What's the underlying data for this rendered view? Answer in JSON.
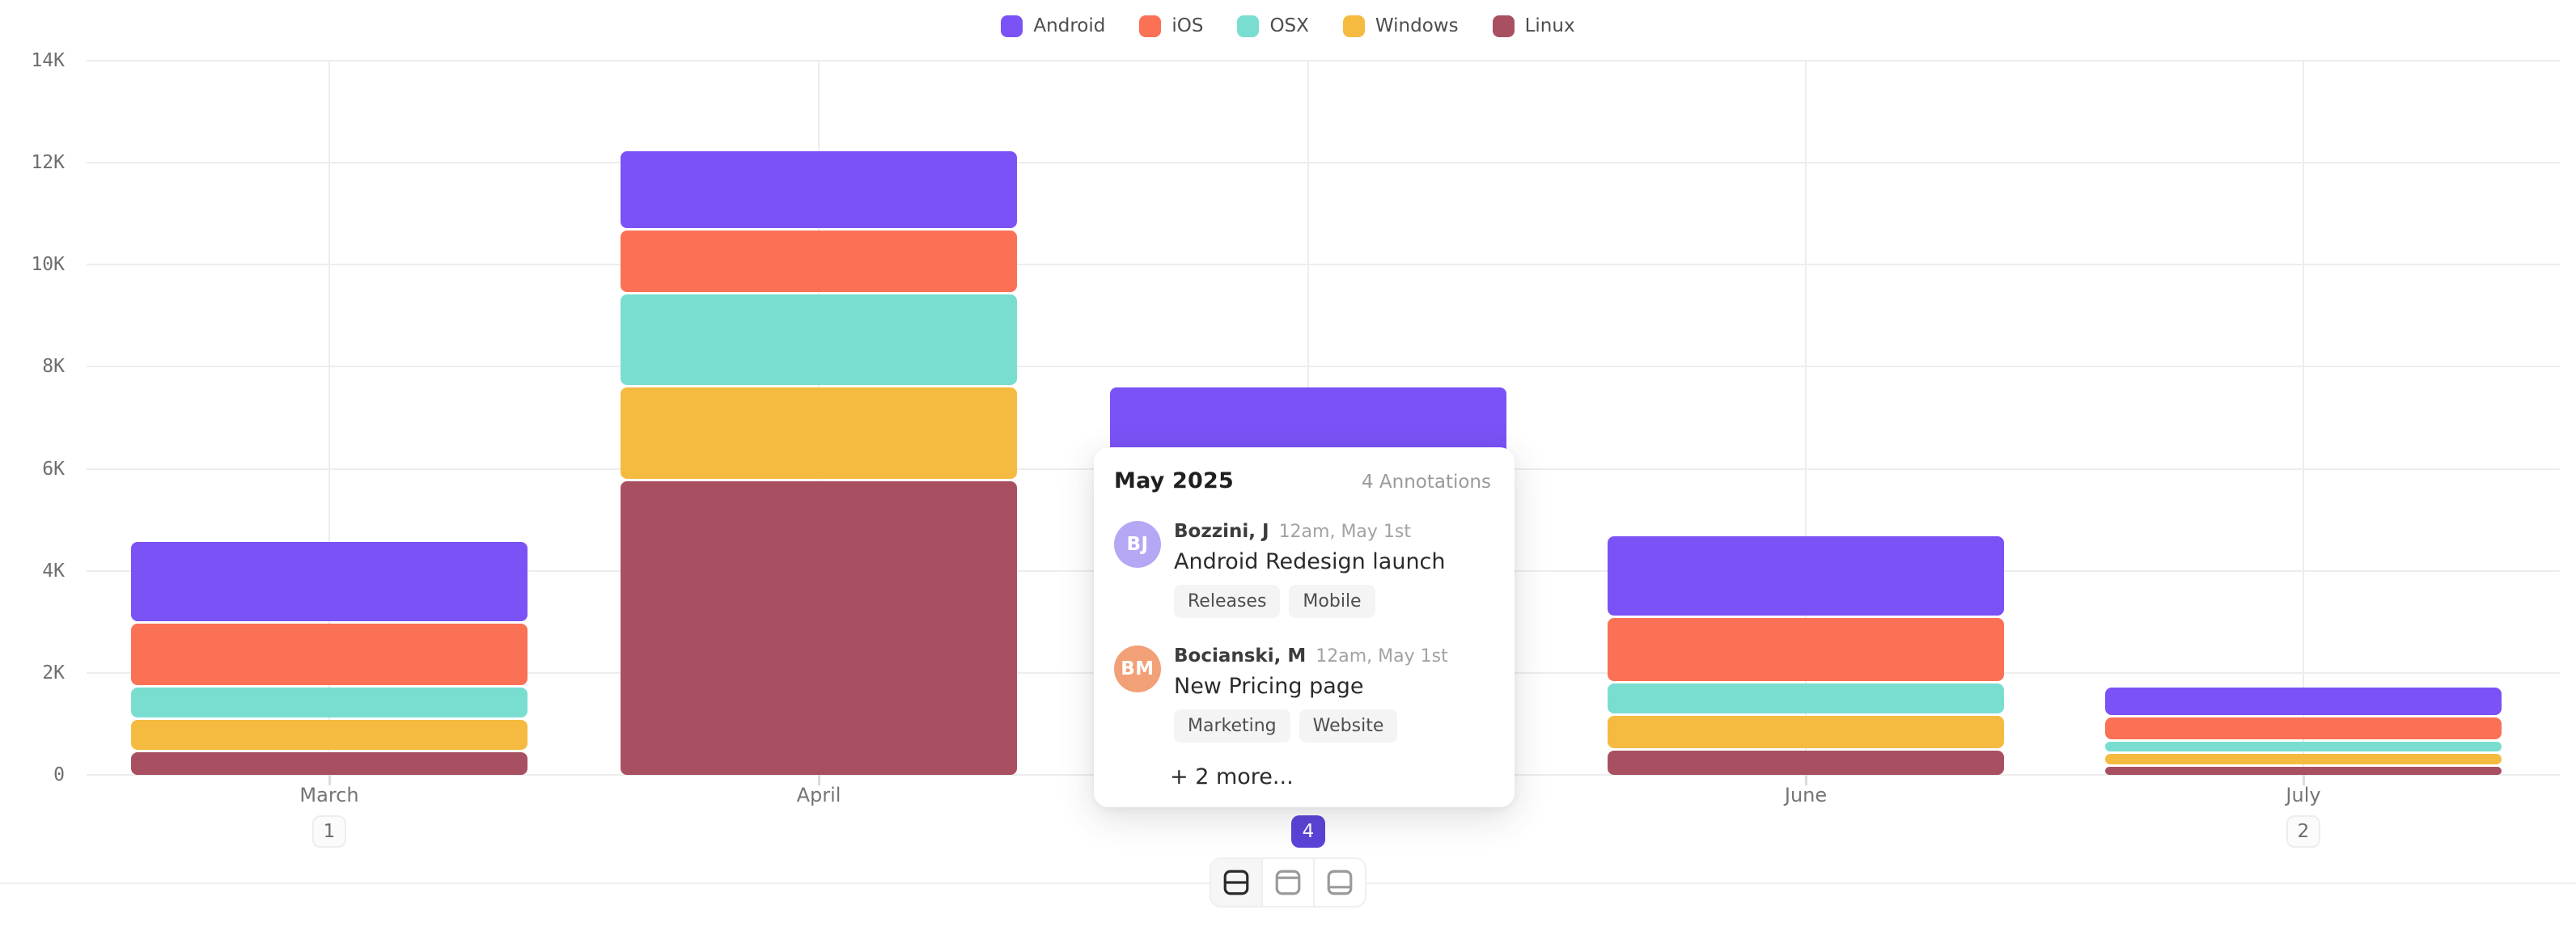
{
  "legend": {
    "items": [
      {
        "label": "Android",
        "color": "#7a52f6"
      },
      {
        "label": "iOS",
        "color": "#fa7155"
      },
      {
        "label": "OSX",
        "color": "#79ded0"
      },
      {
        "label": "Windows",
        "color": "#f4bb40"
      },
      {
        "label": "Linux",
        "color": "#a85062"
      }
    ]
  },
  "chart_data": {
    "type": "bar",
    "stacked": true,
    "title": "",
    "xlabel": "",
    "ylabel": "",
    "categories": [
      "March",
      "April",
      "May",
      "June",
      "July"
    ],
    "series": [
      {
        "name": "Android",
        "color": "#7a52f6",
        "values": [
          1550,
          1520,
          2300,
          1550,
          540
        ]
      },
      {
        "name": "iOS",
        "color": "#fa7155",
        "values": [
          1200,
          1200,
          1500,
          1240,
          430
        ]
      },
      {
        "name": "OSX",
        "color": "#79ded0",
        "values": [
          590,
          1780,
          1100,
          590,
          190
        ]
      },
      {
        "name": "Windows",
        "color": "#f4bb40",
        "values": [
          590,
          1780,
          1300,
          630,
          210
        ]
      },
      {
        "name": "Linux",
        "color": "#a85062",
        "values": [
          440,
          5760,
          1200,
          480,
          160
        ]
      }
    ],
    "ylim": [
      0,
      14000
    ],
    "yticks": [
      {
        "value": 0,
        "label": "0"
      },
      {
        "value": 2000,
        "label": "2K"
      },
      {
        "value": 4000,
        "label": "4K"
      },
      {
        "value": 6000,
        "label": "6K"
      },
      {
        "value": 8000,
        "label": "8K"
      },
      {
        "value": 10000,
        "label": "10K"
      },
      {
        "value": 12000,
        "label": "12K"
      },
      {
        "value": 14000,
        "label": "14K"
      }
    ],
    "grid": "on",
    "legend_position": "top-center",
    "annotation_counts": [
      {
        "category": "March",
        "count": "1",
        "active": false
      },
      {
        "category": "May",
        "count": "4",
        "active": true
      },
      {
        "category": "July",
        "count": "2",
        "active": false
      }
    ]
  },
  "tooltip": {
    "title": "May 2025",
    "count_label": "4 Annotations",
    "annotations": [
      {
        "initials": "BJ",
        "avatar_color": "#b6a7f5",
        "author": "Bozzini, J",
        "time": "12am, May 1st",
        "text": "Android Redesign launch",
        "tags": [
          "Releases",
          "Mobile"
        ]
      },
      {
        "initials": "BM",
        "avatar_color": "#f1a077",
        "author": "Bocianski, M",
        "time": "12am, May 1st",
        "text": "New Pricing page",
        "tags": [
          "Marketing",
          "Website"
        ]
      }
    ],
    "more_label": "+ 2 more..."
  },
  "controls": {
    "view_buttons": [
      {
        "name": "split-rows",
        "selected": true
      },
      {
        "name": "panel-top",
        "selected": false
      },
      {
        "name": "panel-bottom",
        "selected": false
      }
    ]
  },
  "colors": {
    "badge_active": "#5b43d8",
    "gridline": "#ededed"
  }
}
